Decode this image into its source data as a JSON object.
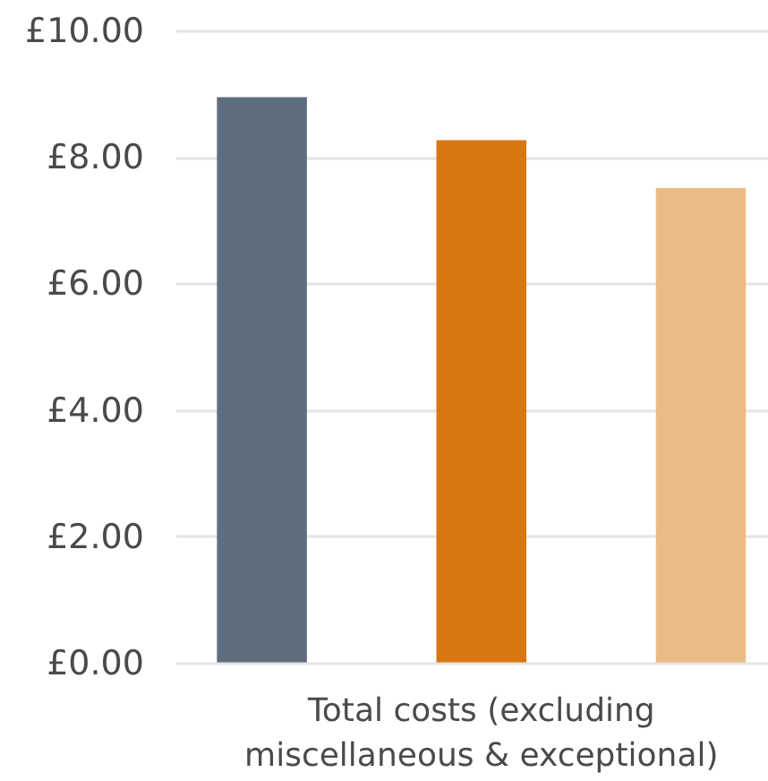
{
  "chart_data": {
    "type": "bar",
    "categories": [
      null,
      "Total costs (excluding miscellaneous & exceptional)",
      null
    ],
    "values": [
      8.96,
      8.28,
      7.52
    ],
    "colors": [
      "#5f6e7f",
      "#d87712",
      "#ecbc88"
    ],
    "ylim": [
      0,
      10
    ],
    "yticks": [
      {
        "value": 0,
        "label": "£0.00"
      },
      {
        "value": 2,
        "label": "£2.00"
      },
      {
        "value": 4,
        "label": "£4.00"
      },
      {
        "value": 6,
        "label": "£6.00"
      },
      {
        "value": 8,
        "label": "£8.00"
      },
      {
        "value": 10,
        "label": "£10.00"
      }
    ],
    "grid": "y"
  }
}
